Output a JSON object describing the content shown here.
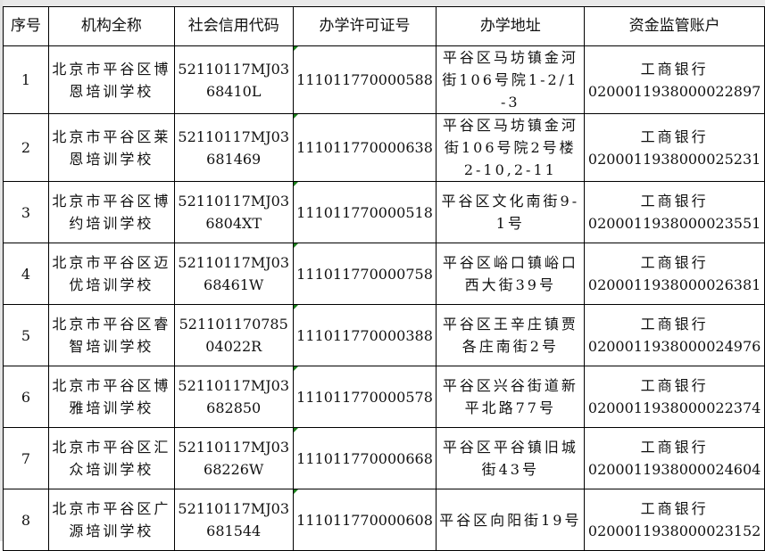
{
  "headers": [
    "序号",
    "机构全称",
    "社会信用代码",
    "办学许可证号",
    "办学地址",
    "资金监管账户"
  ],
  "rows": [
    {
      "no": "1",
      "name": "北京市平谷区博恩培训学校",
      "code": "52110117MJ0368410L",
      "license": "111011770000588",
      "address": "平谷区马坊镇金河街106号院1-2/1-3",
      "bank": "工商银行",
      "account": "0200011938000022897"
    },
    {
      "no": "2",
      "name": "北京市平谷区莱恩培训学校",
      "code": "52110117MJ03681469",
      "license": "111011770000638",
      "address": "平谷区马坊镇金河街106号院2号楼2-10,2-11",
      "bank": "工商银行",
      "account": "0200011938000025231"
    },
    {
      "no": "3",
      "name": "北京市平谷区博约培训学校",
      "code": "52110117MJ036804XT",
      "license": "111011770000518",
      "address": "平谷区文化南街9-1号",
      "bank": "工商银行",
      "account": "0200011938000023551"
    },
    {
      "no": "4",
      "name": "北京市平谷区迈优培训学校",
      "code": "52110117MJ0368461W",
      "license": "111011770000758",
      "address": "平谷区峪口镇峪口西大街39号",
      "bank": "工商银行",
      "account": "0200011938000026381"
    },
    {
      "no": "5",
      "name": "北京市平谷区睿智培训学校",
      "code": "52110117078504022R",
      "license": "111011770000388",
      "address": "平谷区王辛庄镇贾各庄南街2号",
      "bank": "工商银行",
      "account": "0200011938000024976"
    },
    {
      "no": "6",
      "name": "北京市平谷区博雅培训学校",
      "code": "52110117MJ03682850",
      "license": "111011770000578",
      "address": "平谷区兴谷街道新平北路77号",
      "bank": "工商银行",
      "account": "0200011938000022374"
    },
    {
      "no": "7",
      "name": "北京市平谷区汇众培训学校",
      "code": "52110117MJ0368226W",
      "license": "111011770000668",
      "address": "平谷区平谷镇旧城街43号",
      "bank": "工商银行",
      "account": "0200011938000024604"
    },
    {
      "no": "8",
      "name": "北京市平谷区广源培训学校",
      "code": "52110117MJ03681544",
      "license": "111011770000608",
      "address": "平谷区向阳街19号",
      "bank": "工商银行",
      "account": "0200011938000023152"
    }
  ]
}
